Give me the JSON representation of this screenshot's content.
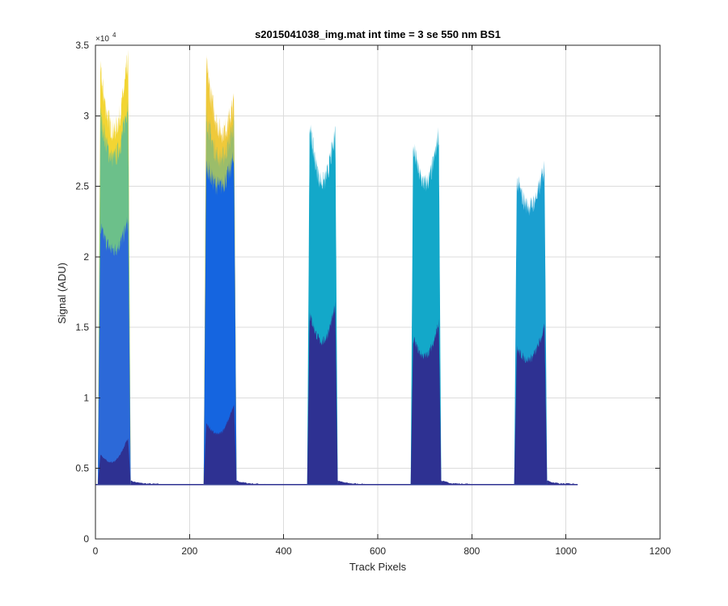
{
  "chart_data": {
    "type": "area",
    "title": "s2015041038_img.mat int time = 3 se  550 nm BS1",
    "xlabel": "Track Pixels",
    "ylabel": "Signal (ADU)",
    "y_exponent_label": "×10",
    "y_exponent_power": "4",
    "xlim": [
      0,
      1200
    ],
    "ylim": [
      0,
      35000
    ],
    "xticks": [
      0,
      200,
      400,
      600,
      800,
      1000,
      1200
    ],
    "yticks": [
      0,
      5000,
      10000,
      15000,
      20000,
      25000,
      30000,
      35000
    ],
    "xtick_labels": [
      "0",
      "200",
      "400",
      "600",
      "800",
      "1000",
      "1200"
    ],
    "ytick_labels": [
      "0",
      "0.5",
      "1",
      "1.5",
      "2",
      "2.5",
      "3",
      "3.5"
    ],
    "grid": true,
    "baseline": 3850,
    "data_range": [
      0,
      1025
    ],
    "tracks": [
      {
        "x_start": 5,
        "x_end": 75,
        "layers": [
          {
            "color": "#f2d533",
            "edge_left": 33000,
            "center": 29000,
            "edge_right": 34000
          },
          {
            "color": "#6cc08a",
            "edge_left": 30000,
            "center": 27000,
            "edge_right": 31000
          },
          {
            "color": "#2c69d8",
            "edge_left": 22000,
            "center": 20500,
            "edge_right": 22500
          },
          {
            "color": "#2e3192",
            "edge_left": 6000,
            "center": 5500,
            "edge_right": 7200
          }
        ]
      },
      {
        "x_start": 230,
        "x_end": 300,
        "layers": [
          {
            "color": "#efc93a",
            "edge_left": 33500,
            "center": 29000,
            "edge_right": 31000
          },
          {
            "color": "#9bbd6a",
            "edge_left": 30000,
            "center": 27000,
            "edge_right": 29500
          },
          {
            "color": "#1565e0",
            "edge_left": 26500,
            "center": 25000,
            "edge_right": 27000
          },
          {
            "color": "#2e3192",
            "edge_left": 8200,
            "center": 7500,
            "edge_right": 9500
          }
        ]
      },
      {
        "x_start": 450,
        "x_end": 515,
        "layers": [
          {
            "color": "#13a8c9",
            "edge_left": 29300,
            "center": 25300,
            "edge_right": 29000
          },
          {
            "color": "#2e3192",
            "edge_left": 16000,
            "center": 14000,
            "edge_right": 16500
          }
        ]
      },
      {
        "x_start": 670,
        "x_end": 735,
        "layers": [
          {
            "color": "#13a8c9",
            "edge_left": 27800,
            "center": 25200,
            "edge_right": 28800
          },
          {
            "color": "#2e3192",
            "edge_left": 14200,
            "center": 13000,
            "edge_right": 15300
          }
        ]
      },
      {
        "x_start": 890,
        "x_end": 960,
        "layers": [
          {
            "color": "#1a9fd0",
            "edge_left": 25400,
            "center": 23600,
            "edge_right": 26400
          },
          {
            "color": "#2e3192",
            "edge_left": 13500,
            "center": 12800,
            "edge_right": 15000
          }
        ]
      }
    ]
  }
}
